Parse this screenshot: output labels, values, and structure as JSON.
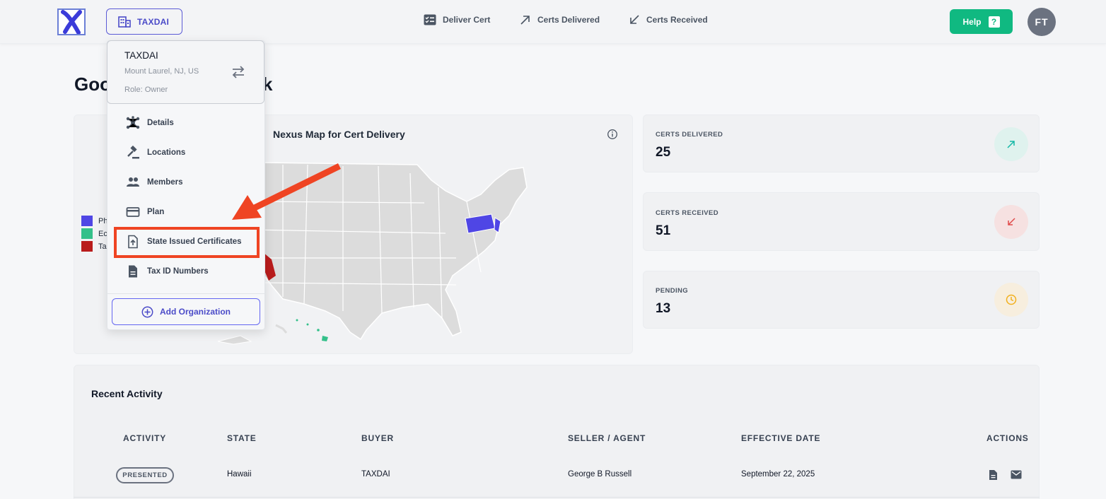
{
  "header": {
    "org_button_label": "TAXDAI",
    "nav": [
      {
        "label": "Deliver Cert",
        "icon": "checklist-icon"
      },
      {
        "label": "Certs Delivered",
        "icon": "arrow-up-right-icon"
      },
      {
        "label": "Certs Received",
        "icon": "arrow-down-left-icon"
      }
    ],
    "help_label": "Help",
    "help_icon_text": "?",
    "avatar_initials": "FT"
  },
  "greeting": {
    "left": "Goo",
    "right": "k"
  },
  "map": {
    "title": "Nexus Map for Cert Delivery",
    "legend": [
      {
        "label": "Ph",
        "color": "#4f46e5"
      },
      {
        "label": "Ec",
        "color": "#34c08a"
      },
      {
        "label": "Ta",
        "color": "#b91c1c"
      }
    ]
  },
  "stats": [
    {
      "label": "CERTS DELIVERED",
      "value": "25",
      "icon": "arrow-up-right-icon",
      "color": "#14b8a6",
      "bg": "#dff2ee"
    },
    {
      "label": "CERTS RECEIVED",
      "value": "51",
      "icon": "arrow-down-left-icon",
      "color": "#e04a4a",
      "bg": "#f6e1e1"
    },
    {
      "label": "PENDING",
      "value": "13",
      "icon": "clock-icon",
      "color": "#f2b01e",
      "bg": "#f7eede"
    }
  ],
  "activity": {
    "title": "Recent Activity",
    "columns": [
      "ACTIVITY",
      "STATE",
      "BUYER",
      "SELLER / AGENT",
      "EFFECTIVE DATE",
      "ACTIONS"
    ],
    "rows": [
      {
        "activity": "PRESENTED",
        "state": "Hawaii",
        "buyer": "TAXDAI",
        "seller": "George B Russell",
        "date": "September 22, 2025"
      }
    ]
  },
  "dropdown": {
    "org_name": "TAXDAI",
    "org_location": "Mount Laurel, NJ, US",
    "org_role": "Role: Owner",
    "items": [
      {
        "label": "Details",
        "icon": "network-icon"
      },
      {
        "label": "Locations",
        "icon": "gavel-icon"
      },
      {
        "label": "Members",
        "icon": "people-icon"
      },
      {
        "label": "Plan",
        "icon": "credit-card-icon"
      },
      {
        "label": "State Issued Certificates",
        "icon": "file-upload-icon"
      },
      {
        "label": "Tax ID Numbers",
        "icon": "document-icon"
      }
    ],
    "add_label": "Add Organization"
  }
}
